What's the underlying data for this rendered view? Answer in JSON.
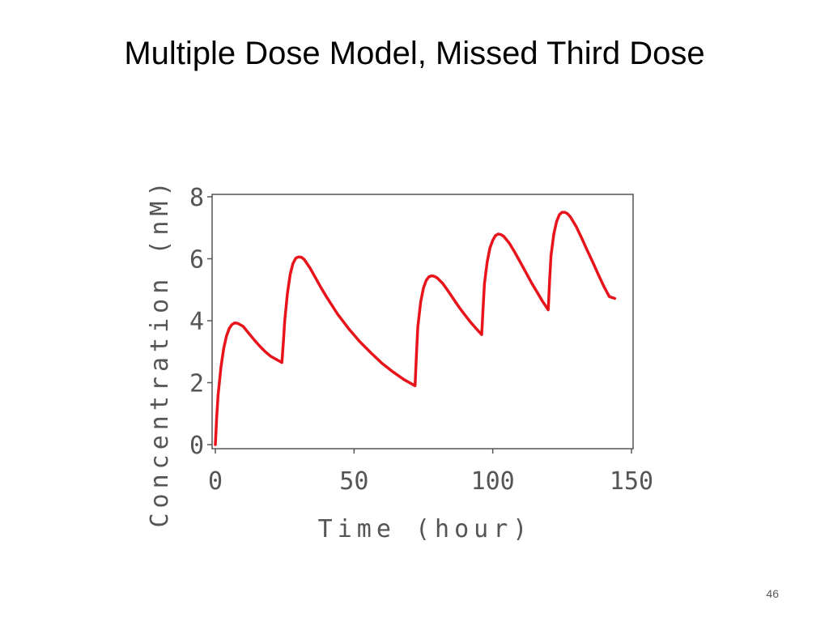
{
  "slide": {
    "title": "Multiple Dose Model, Missed Third Dose",
    "page_number": "46"
  },
  "colors": {
    "series": "#e8141b",
    "axis": "#555555",
    "frame": "#555555"
  },
  "chart_data": {
    "type": "line",
    "title": "",
    "xlabel": "Time (hour)",
    "ylabel": "Concentration (nM)",
    "xlim": [
      0,
      150
    ],
    "ylim": [
      0,
      8
    ],
    "xticks": [
      0,
      50,
      100,
      150
    ],
    "yticks": [
      0,
      2,
      4,
      6,
      8
    ],
    "grid": false,
    "series": [
      {
        "x": [
          0,
          0.5,
          1,
          2,
          3,
          4,
          5,
          6,
          7,
          8,
          10,
          12,
          14,
          16,
          18,
          20,
          22,
          24,
          24.5,
          25,
          26,
          27,
          28,
          29,
          30,
          31,
          32,
          34,
          36,
          38,
          40,
          44,
          48,
          52,
          56,
          60,
          64,
          68,
          72,
          72.5,
          73,
          74,
          75,
          76,
          77,
          78,
          79,
          80,
          82,
          84,
          86,
          88,
          90,
          92,
          94,
          96,
          96.5,
          97,
          98,
          99,
          100,
          101,
          102,
          103,
          104,
          106,
          108,
          110,
          112,
          114,
          116,
          118,
          120,
          120.5,
          121,
          122,
          123,
          124,
          125,
          126,
          127,
          128,
          130,
          132,
          134,
          136,
          138,
          140,
          142,
          144
        ],
        "y": [
          0,
          0.9,
          1.6,
          2.5,
          3.1,
          3.5,
          3.75,
          3.88,
          3.93,
          3.92,
          3.82,
          3.6,
          3.38,
          3.18,
          3.0,
          2.85,
          2.75,
          2.65,
          3.3,
          4.0,
          4.9,
          5.5,
          5.85,
          6.02,
          6.06,
          6.05,
          5.98,
          5.72,
          5.4,
          5.08,
          4.78,
          4.22,
          3.75,
          3.33,
          2.97,
          2.63,
          2.35,
          2.1,
          1.9,
          2.9,
          3.8,
          4.6,
          5.05,
          5.3,
          5.42,
          5.45,
          5.43,
          5.38,
          5.2,
          4.95,
          4.68,
          4.42,
          4.18,
          3.95,
          3.75,
          3.55,
          4.4,
          5.2,
          5.9,
          6.35,
          6.6,
          6.75,
          6.8,
          6.78,
          6.72,
          6.5,
          6.2,
          5.88,
          5.55,
          5.22,
          4.92,
          4.62,
          4.35,
          5.3,
          6.1,
          6.8,
          7.2,
          7.42,
          7.5,
          7.5,
          7.45,
          7.35,
          7.05,
          6.68,
          6.28,
          5.9,
          5.5,
          5.12,
          4.78,
          4.72
        ]
      }
    ]
  }
}
